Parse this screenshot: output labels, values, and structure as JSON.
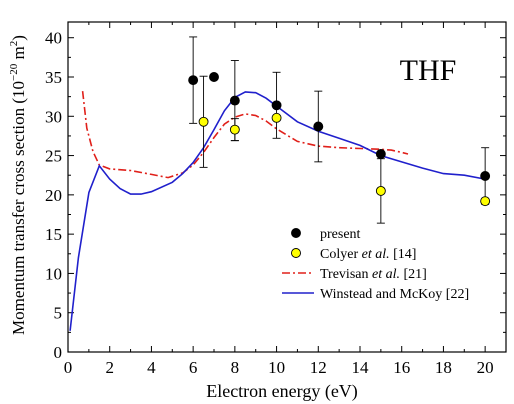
{
  "chart_data": {
    "type": "scatter",
    "title": "THF",
    "xlabel": "Electron energy (eV)",
    "ylabel": {
      "main": "Momentum transfer cross section (10",
      "exp": "−20",
      "mid": " m",
      "exp2": "2",
      "end": ")"
    },
    "xlim": [
      0,
      21
    ],
    "ylim": [
      0,
      42
    ],
    "xticks": [
      0,
      2,
      4,
      6,
      8,
      10,
      12,
      14,
      16,
      18,
      20
    ],
    "yticks": [
      0,
      5,
      10,
      15,
      20,
      25,
      30,
      35,
      40
    ],
    "legend_position": "bottom-right",
    "series": [
      {
        "name": "present",
        "kind": "points",
        "marker": "circle",
        "color": "#000000",
        "fill": "#000000",
        "points": [
          {
            "x": 6,
            "y": 34.6,
            "err": 5.5
          },
          {
            "x": 7,
            "y": 35.0
          },
          {
            "x": 8,
            "y": 32.0,
            "err": 5.1
          },
          {
            "x": 10,
            "y": 31.4,
            "err": 4.2
          },
          {
            "x": 12,
            "y": 28.7,
            "err": 4.5
          },
          {
            "x": 15,
            "y": 25.2
          },
          {
            "x": 20,
            "y": 22.4,
            "err": 3.6
          }
        ]
      },
      {
        "name": "Colyer et al. [14]",
        "name_parts": [
          "Colyer ",
          "et al.",
          " [14]"
        ],
        "kind": "points",
        "marker": "circle",
        "color": "#000000",
        "fill": "#ffff00",
        "points": [
          {
            "x": 6.5,
            "y": 29.3,
            "err": 5.8
          },
          {
            "x": 8,
            "y": 28.3,
            "err": 1.4
          },
          {
            "x": 10,
            "y": 29.8
          },
          {
            "x": 15,
            "y": 20.5,
            "err": 4.1
          },
          {
            "x": 20,
            "y": 19.2
          }
        ]
      },
      {
        "name": "Trevisan et al. [21]",
        "name_parts": [
          "Trevisan ",
          "et al.",
          " [21]"
        ],
        "kind": "line",
        "dash": "dashdot",
        "color": "#e0201a",
        "x": [
          0.7,
          0.9,
          1.2,
          1.5,
          2.0,
          3.0,
          4.0,
          4.8,
          5.5,
          6.0,
          6.5,
          7.0,
          7.5,
          8.0,
          8.5,
          9.0,
          9.5,
          10.0,
          11.0,
          12.0,
          13.0,
          14.0,
          15.0,
          15.5,
          16.0,
          16.3
        ],
        "y": [
          33.2,
          28.5,
          25.5,
          23.8,
          23.3,
          23.1,
          22.6,
          22.2,
          22.8,
          23.8,
          25.4,
          27.3,
          29.0,
          29.9,
          30.3,
          30.1,
          29.4,
          28.4,
          26.8,
          26.2,
          26.0,
          25.9,
          25.8,
          25.7,
          25.4,
          25.2
        ]
      },
      {
        "name": "Winstead and McKoy [22]",
        "kind": "line",
        "dash": "solid",
        "color": "#2020cc",
        "x": [
          0.1,
          0.5,
          1.0,
          1.5,
          2.0,
          2.5,
          3.0,
          3.5,
          4.0,
          5.0,
          5.5,
          6.0,
          6.5,
          7.0,
          7.5,
          8.0,
          8.5,
          9.0,
          9.5,
          10.0,
          11.0,
          12.0,
          13.0,
          14.0,
          15.0,
          16.0,
          17.0,
          18.0,
          19.0,
          20.0
        ],
        "y": [
          2.7,
          12.0,
          20.3,
          23.7,
          22.0,
          20.8,
          20.1,
          20.1,
          20.4,
          21.6,
          22.7,
          24.1,
          26.0,
          28.3,
          30.7,
          32.4,
          33.1,
          33.0,
          32.3,
          31.3,
          29.3,
          28.1,
          27.2,
          26.3,
          25.0,
          24.2,
          23.4,
          22.7,
          22.5,
          22.0
        ]
      }
    ]
  }
}
